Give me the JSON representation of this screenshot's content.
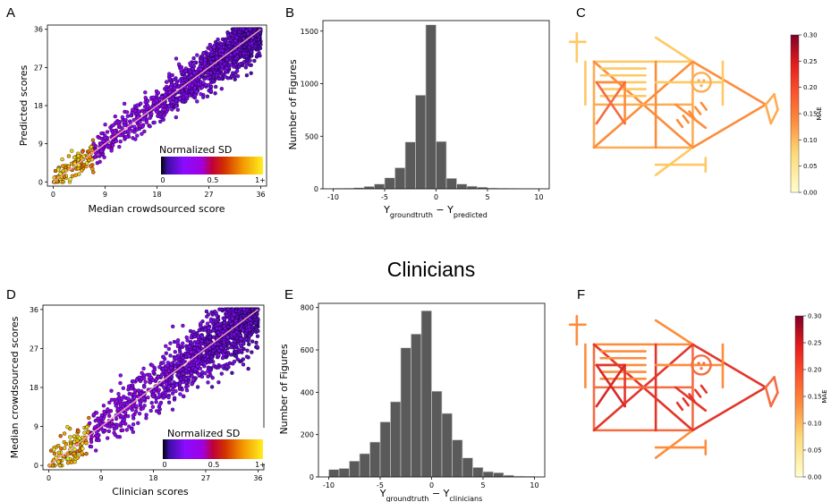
{
  "section_title": "Clinicians",
  "panels": {
    "A": {
      "letter": "A",
      "xlabel": "Median crowdsourced score",
      "ylabel": "Predicted scores"
    },
    "B": {
      "letter": "B",
      "xlabel_base": "Y",
      "xlabel_sub1": "groundtruth",
      "xlabel_mid": " − Y",
      "xlabel_sub2": "predicted",
      "ylabel": "Number of Figures"
    },
    "C": {
      "letter": "C",
      "colorbar_label": "MAE"
    },
    "D": {
      "letter": "D",
      "xlabel": "Clinician scores",
      "ylabel": "Median crowdsourced scores"
    },
    "E": {
      "letter": "E",
      "xlabel_base": "Y",
      "xlabel_sub1": "groundtruth",
      "xlabel_mid": " − Y",
      "xlabel_sub2": "clinicians",
      "ylabel": "Number of Figures"
    },
    "F": {
      "letter": "F",
      "colorbar_label": "MAE"
    }
  },
  "scatter_legend": {
    "title": "Normalized SD",
    "ticks": [
      "0",
      "0.5",
      "1+"
    ]
  },
  "colorbar_ticks": [
    "0.00",
    "0.05",
    "0.10",
    "0.15",
    "0.20",
    "0.25",
    "0.30"
  ],
  "colors": {
    "bar_fill": "#5a5a5a",
    "diag_line": "#f5a3b5",
    "point_edge": "#000000",
    "cmap_low": "#ffffcc",
    "cmap_high": "#800026"
  },
  "chart_data": [
    {
      "id": "A",
      "type": "scatter",
      "title": "",
      "xlabel": "Median crowdsourced score",
      "ylabel": "Predicted scores",
      "xlim": [
        -1,
        37
      ],
      "ylim": [
        -1,
        37
      ],
      "xticks": [
        0,
        9,
        18,
        27,
        36
      ],
      "yticks": [
        0,
        9,
        18,
        27,
        36
      ],
      "diagonal": [
        [
          0,
          0
        ],
        [
          36,
          36
        ]
      ],
      "spread": 2.6,
      "color_by": "Normalized SD",
      "colormap": "plasma-like"
    },
    {
      "id": "B",
      "type": "bar",
      "xlabel": "Y_groundtruth − Y_predicted",
      "ylabel": "Number of Figures",
      "xlim": [
        -11,
        11
      ],
      "ylim": [
        0,
        1600
      ],
      "xticks": [
        -10,
        -5,
        0,
        5,
        10
      ],
      "yticks": [
        0,
        500,
        1000,
        1500
      ],
      "bin_edges": [
        -10,
        -9,
        -8,
        -7,
        -6,
        -5,
        -4,
        -3,
        -2,
        -1,
        0,
        1,
        2,
        3,
        4,
        5,
        6,
        7,
        8,
        9,
        10
      ],
      "values": [
        3,
        5,
        10,
        22,
        45,
        105,
        200,
        445,
        890,
        1560,
        450,
        100,
        45,
        25,
        15,
        8,
        5,
        3,
        2,
        2
      ]
    },
    {
      "id": "C",
      "type": "heatmap",
      "colorbar_label": "MAE",
      "vmin": 0,
      "vmax": 0.3
    },
    {
      "id": "D",
      "type": "scatter",
      "title": "",
      "xlabel": "Clinician scores",
      "ylabel": "Median crowdsourced scores",
      "xlim": [
        -1,
        37
      ],
      "ylim": [
        -1,
        37
      ],
      "xticks": [
        0,
        9,
        18,
        27,
        36
      ],
      "yticks": [
        0,
        9,
        18,
        27,
        36
      ],
      "diagonal": [
        [
          0,
          0
        ],
        [
          36,
          36
        ]
      ],
      "spread": 3.6,
      "color_by": "Normalized SD",
      "colormap": "plasma-like"
    },
    {
      "id": "E",
      "type": "bar",
      "xlabel": "Y_groundtruth − Y_clinicians",
      "ylabel": "Number of Figures",
      "xlim": [
        -11,
        11
      ],
      "ylim": [
        0,
        820
      ],
      "xticks": [
        -10,
        -5,
        0,
        5,
        10
      ],
      "yticks": [
        0,
        200,
        400,
        600,
        800
      ],
      "bin_edges": [
        -10,
        -9,
        -8,
        -7,
        -6,
        -5,
        -4,
        -3,
        -2,
        -1,
        0,
        1,
        2,
        3,
        4,
        5,
        6,
        7,
        8,
        9,
        10
      ],
      "values": [
        35,
        40,
        75,
        110,
        165,
        260,
        355,
        610,
        675,
        785,
        405,
        300,
        175,
        90,
        45,
        25,
        20,
        8,
        4,
        3
      ]
    },
    {
      "id": "F",
      "type": "heatmap",
      "colorbar_label": "MAE",
      "vmin": 0,
      "vmax": 0.3
    }
  ]
}
